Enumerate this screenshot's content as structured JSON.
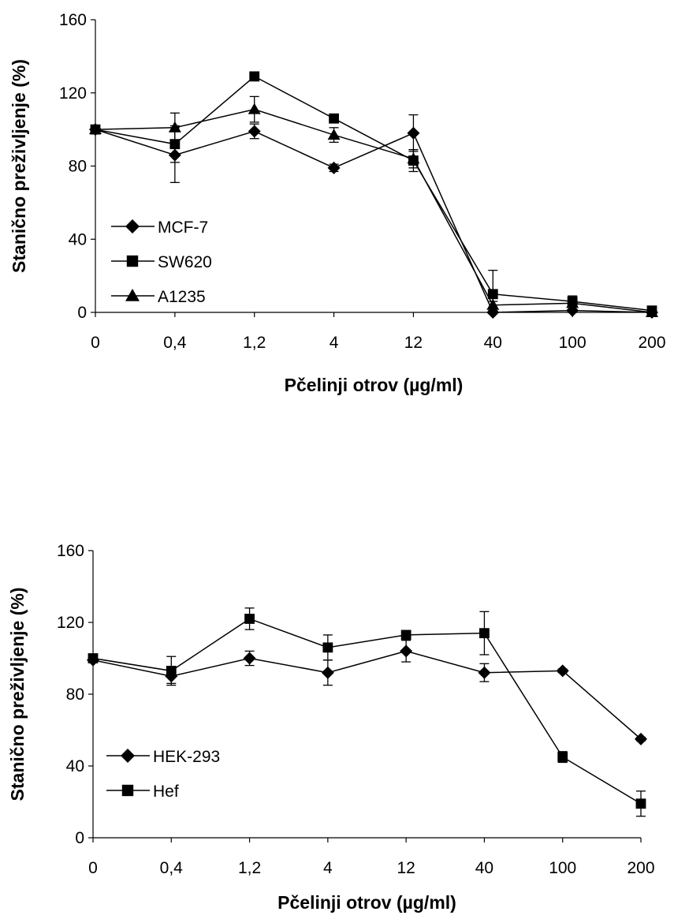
{
  "chart_data": [
    {
      "type": "line",
      "title": "",
      "xlabel": "Pčelinji otrov (µg/ml)",
      "ylabel": "Stanično preživljenje (%)",
      "categories": [
        "0",
        "0,4",
        "1,2",
        "4",
        "12",
        "40",
        "100",
        "200"
      ],
      "ylim": [
        0,
        160
      ],
      "yticks": [
        "0",
        "40",
        "80",
        "120",
        "160"
      ],
      "grid": false,
      "legend_position": "bottom-left",
      "series": [
        {
          "name": "MCF-7",
          "marker": "diamond",
          "values": [
            100,
            86,
            99,
            79,
            98,
            0,
            1,
            0
          ],
          "errors": [
            0,
            15,
            4,
            2,
            10,
            1,
            2,
            1
          ]
        },
        {
          "name": "SW620",
          "marker": "square",
          "values": [
            100,
            92,
            129,
            106,
            83,
            10,
            6,
            1
          ],
          "errors": [
            0,
            10,
            2,
            2,
            6,
            13,
            3,
            1
          ]
        },
        {
          "name": "A1235",
          "marker": "triangle",
          "values": [
            100,
            101,
            111,
            97,
            84,
            4,
            5,
            0
          ],
          "errors": [
            0,
            8,
            7,
            4,
            5,
            2,
            2,
            1
          ]
        }
      ]
    },
    {
      "type": "line",
      "title": "",
      "xlabel": "Pčelinji otrov (µg/ml)",
      "ylabel": "Stanično preživljenje (%)",
      "categories": [
        "0",
        "0,4",
        "1,2",
        "4",
        "12",
        "40",
        "100",
        "200"
      ],
      "ylim": [
        0,
        160
      ],
      "yticks": [
        "0",
        "40",
        "80",
        "120",
        "160"
      ],
      "grid": false,
      "legend_position": "bottom-left",
      "series": [
        {
          "name": "HEK-293",
          "marker": "diamond",
          "values": [
            99,
            90,
            100,
            92,
            104,
            92,
            93,
            55
          ],
          "errors": [
            0,
            4,
            4,
            7,
            6,
            5,
            1,
            1
          ]
        },
        {
          "name": "Hef",
          "marker": "square",
          "values": [
            100,
            93,
            122,
            106,
            113,
            114,
            45,
            19
          ],
          "errors": [
            0,
            8,
            6,
            7,
            2,
            12,
            3,
            7
          ]
        }
      ]
    }
  ]
}
